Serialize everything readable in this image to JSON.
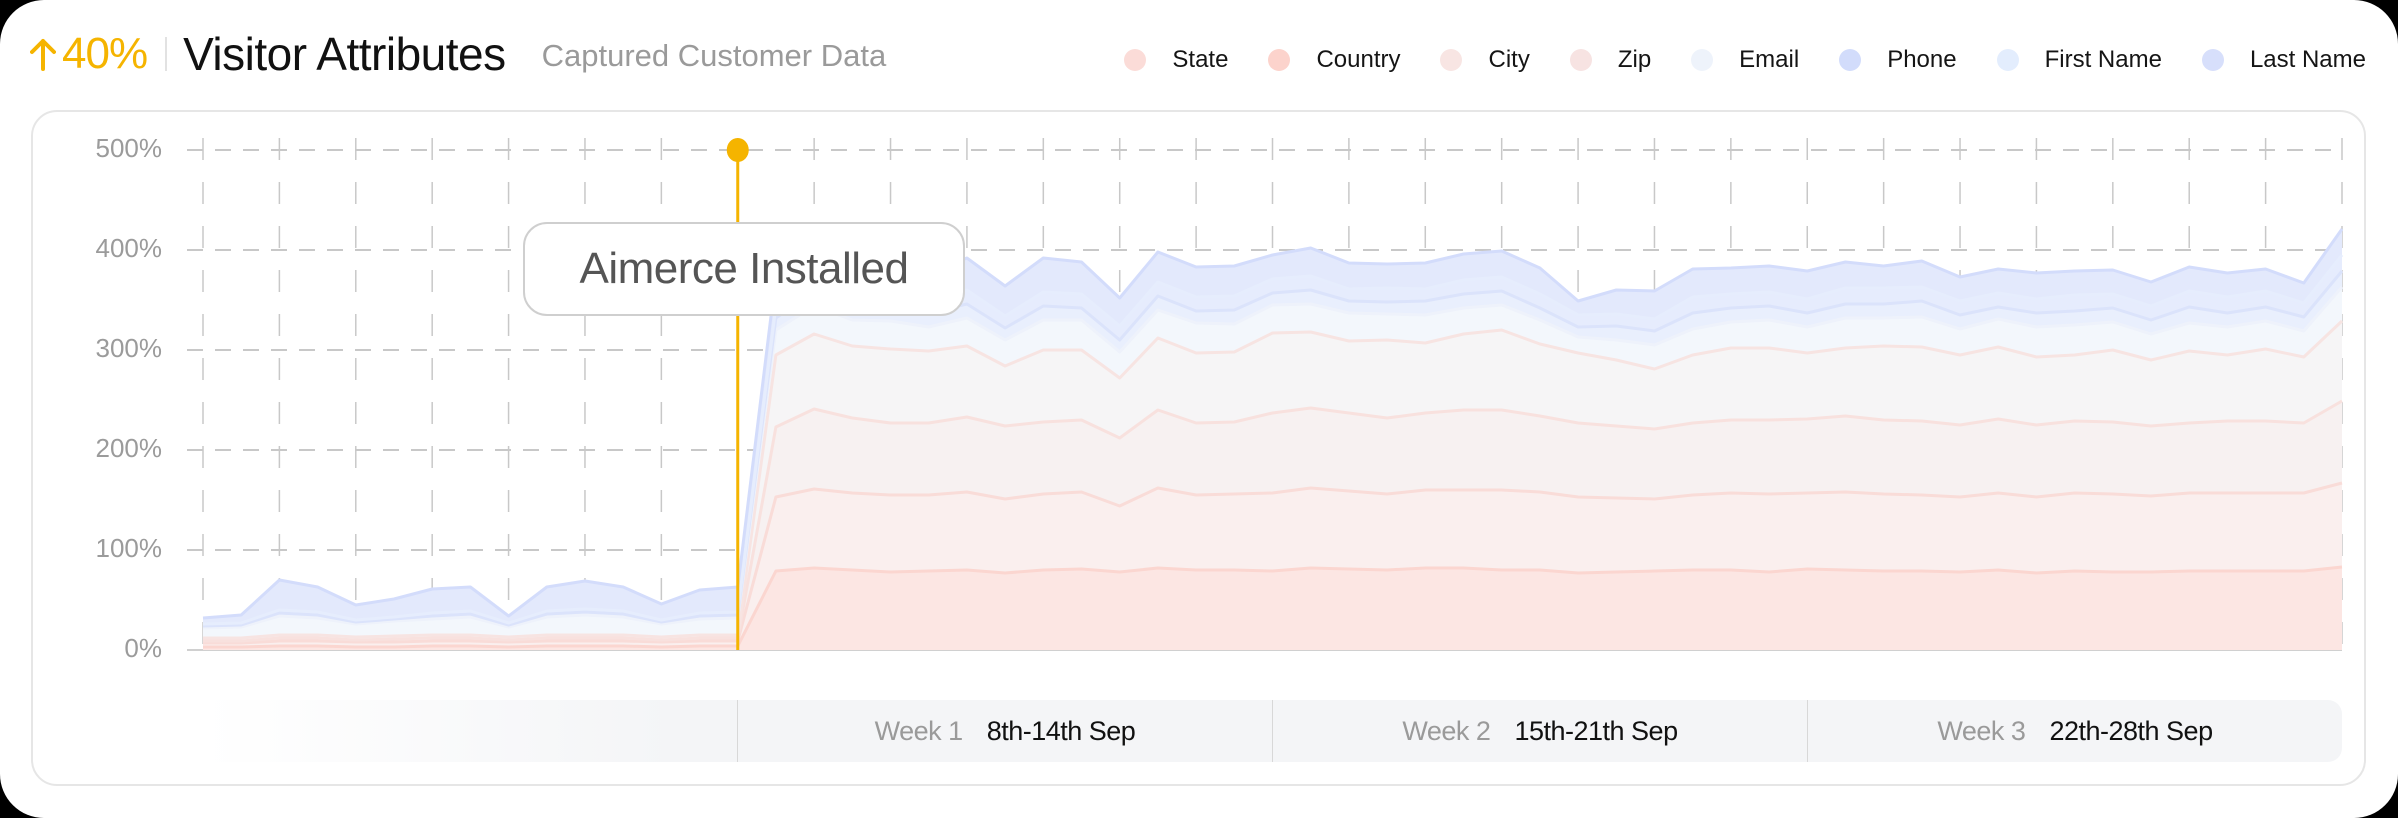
{
  "header": {
    "growth_value": "40%",
    "growth_icon": "arrow-up-icon",
    "title": "Visitor Attributes",
    "subtitle": "Captured Customer Data"
  },
  "colors": {
    "accent": "#f5b400",
    "grid": "#c8c8c8"
  },
  "legend": [
    {
      "label": "State",
      "color": "#fbdcd8"
    },
    {
      "label": "Country",
      "color": "#fcd3cc"
    },
    {
      "label": "City",
      "color": "#f8e5e3"
    },
    {
      "label": "Zip",
      "color": "#f7e3e2"
    },
    {
      "label": "Email",
      "color": "#eef3fb"
    },
    {
      "label": "Phone",
      "color": "#d2dcfb"
    },
    {
      "label": "First Name",
      "color": "#e3edfd"
    },
    {
      "label": "Last Name",
      "color": "#d7dffb"
    }
  ],
  "annotation": {
    "label": "Aimerce Installed",
    "index": 14
  },
  "weeks": [
    {
      "num": "Week 1",
      "range": "8th-14th Sep"
    },
    {
      "num": "Week 2",
      "range": "15th-21th Sep"
    },
    {
      "num": "Week 3",
      "range": "22th-28th Sep"
    }
  ],
  "chart_data": {
    "type": "area",
    "stacked": true,
    "title": "Visitor Attributes",
    "subtitle": "Captured Customer Data",
    "xlabel": "",
    "ylabel": "",
    "ylim": [
      0,
      500
    ],
    "yticks": [
      "0%",
      "100%",
      "200%",
      "300%",
      "400%",
      "500%"
    ],
    "grid": true,
    "legend_position": "top-right",
    "annotation": {
      "x_index": 14,
      "label": "Aimerce Installed"
    },
    "x_sections": [
      "",
      "Week 1 8th-14th Sep",
      "Week 2 15th-21th Sep",
      "Week 3 22th-28th Sep"
    ],
    "x_count": 57,
    "series": [
      {
        "name": "State",
        "values": [
          3,
          3,
          4,
          4,
          3,
          3,
          4,
          4,
          3,
          4,
          4,
          4,
          3,
          4,
          4,
          79,
          82,
          80,
          78,
          79,
          80,
          77,
          80,
          81,
          78,
          82,
          80,
          80,
          79,
          82,
          81,
          80,
          82,
          82,
          80,
          80,
          77,
          78,
          79,
          80,
          80,
          78,
          81,
          80,
          79,
          79,
          78,
          80,
          77,
          79,
          78,
          78,
          79,
          79,
          79,
          79,
          83
        ]
      },
      {
        "name": "Country",
        "values": [
          4,
          4,
          5,
          5,
          5,
          5,
          5,
          5,
          5,
          5,
          5,
          5,
          5,
          5,
          5,
          74,
          79,
          77,
          77,
          76,
          78,
          74,
          76,
          77,
          66,
          80,
          75,
          76,
          78,
          80,
          78,
          76,
          78,
          78,
          80,
          78,
          76,
          74,
          72,
          75,
          77,
          78,
          76,
          78,
          77,
          76,
          75,
          77,
          76,
          78,
          78,
          76,
          78,
          78,
          78,
          78,
          84
        ]
      },
      {
        "name": "City",
        "values": [
          2,
          2,
          3,
          3,
          2,
          3,
          3,
          3,
          2,
          3,
          3,
          3,
          2,
          3,
          3,
          70,
          80,
          75,
          72,
          72,
          75,
          73,
          72,
          72,
          68,
          78,
          72,
          72,
          80,
          80,
          78,
          76,
          77,
          80,
          80,
          76,
          74,
          72,
          70,
          72,
          73,
          74,
          74,
          76,
          74,
          74,
          72,
          74,
          72,
          72,
          72,
          70,
          70,
          72,
          72,
          70,
          82
        ]
      },
      {
        "name": "Zip",
        "values": [
          3,
          3,
          3,
          3,
          3,
          3,
          3,
          3,
          3,
          3,
          3,
          3,
          3,
          3,
          3,
          72,
          75,
          72,
          74,
          72,
          71,
          60,
          72,
          70,
          60,
          72,
          70,
          70,
          80,
          76,
          72,
          78,
          70,
          76,
          80,
          72,
          70,
          66,
          60,
          68,
          72,
          72,
          66,
          68,
          74,
          74,
          70,
          72,
          68,
          66,
          72,
          66,
          72,
          66,
          72,
          66,
          80
        ]
      },
      {
        "name": "Email",
        "values": [
          10,
          11,
          19,
          17,
          13,
          15,
          16,
          18,
          10,
          18,
          20,
          18,
          13,
          16,
          17,
          25,
          28,
          26,
          28,
          24,
          28,
          26,
          30,
          30,
          26,
          28,
          30,
          28,
          28,
          28,
          28,
          26,
          28,
          26,
          25,
          24,
          16,
          20,
          24,
          26,
          26,
          28,
          26,
          30,
          28,
          30,
          26,
          28,
          30,
          30,
          28,
          26,
          28,
          28,
          28,
          26,
          34
        ]
      },
      {
        "name": "Phone",
        "values": [
          2,
          2,
          3,
          3,
          2,
          2,
          3,
          3,
          2,
          3,
          3,
          3,
          2,
          3,
          3,
          12,
          14,
          12,
          14,
          14,
          14,
          12,
          14,
          12,
          12,
          14,
          12,
          14,
          12,
          14,
          12,
          12,
          14,
          14,
          14,
          12,
          10,
          14,
          14,
          16,
          14,
          14,
          14,
          14,
          14,
          16,
          14,
          12,
          14,
          14,
          14,
          14,
          16,
          14,
          14,
          14,
          16
        ]
      },
      {
        "name": "First Name",
        "values": [
          2,
          2,
          3,
          3,
          2,
          2,
          3,
          3,
          2,
          3,
          3,
          3,
          2,
          3,
          3,
          12,
          14,
          12,
          14,
          14,
          14,
          12,
          14,
          14,
          14,
          14,
          14,
          14,
          14,
          14,
          12,
          14,
          12,
          14,
          14,
          14,
          12,
          12,
          12,
          16,
          14,
          14,
          14,
          16,
          16,
          14,
          14,
          14,
          14,
          16,
          14,
          14,
          16,
          16,
          16,
          14,
          16
        ]
      },
      {
        "name": "Last Name",
        "values": [
          6,
          8,
          30,
          25,
          15,
          18,
          24,
          24,
          7,
          24,
          28,
          24,
          16,
          23,
          25,
          30,
          28,
          28,
          28,
          26,
          32,
          30,
          34,
          32,
          28,
          30,
          30,
          30,
          24,
          28,
          26,
          24,
          26,
          26,
          26,
          26,
          14,
          24,
          28,
          28,
          26,
          26,
          28,
          26,
          22,
          26,
          24,
          24,
          26,
          24,
          24,
          24,
          24,
          24,
          22,
          20,
          26
        ]
      }
    ]
  }
}
